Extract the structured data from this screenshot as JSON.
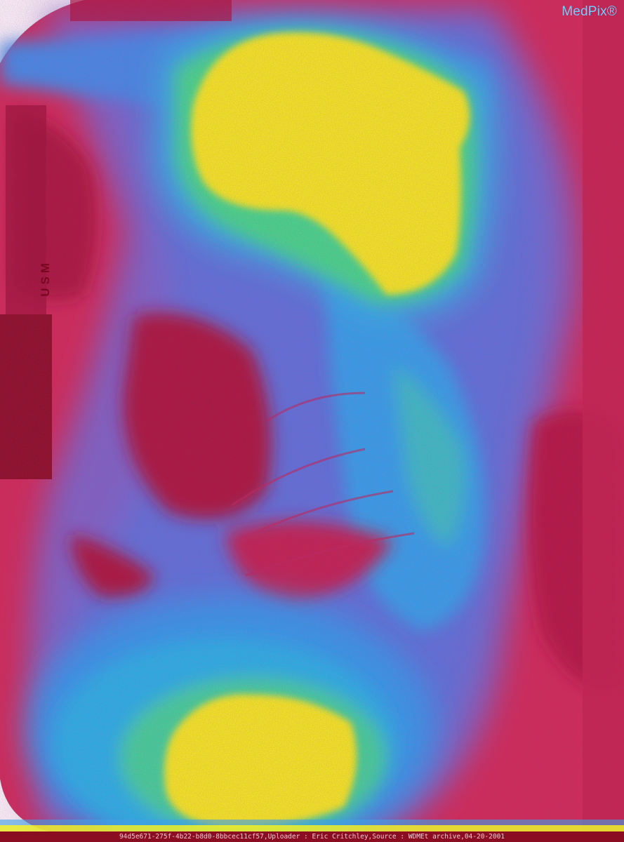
{
  "image": {
    "kind": "false-color radiograph",
    "watermark": "MedPix®",
    "marker_text": "USM",
    "caption": "94d5e671-275f-4b22-b8d0-8bbcec11cf57,Uploader : Eric  Critchley,Source : WDMEt archive,04-20-2001"
  },
  "palette": {
    "background": "#d12a55",
    "dark_red": "#8a0d22",
    "pink": "#c94a78",
    "blue": "#3f7ee6",
    "cyan": "#2fb6ee",
    "green": "#3fe08a",
    "yellow": "#f7f21c"
  }
}
